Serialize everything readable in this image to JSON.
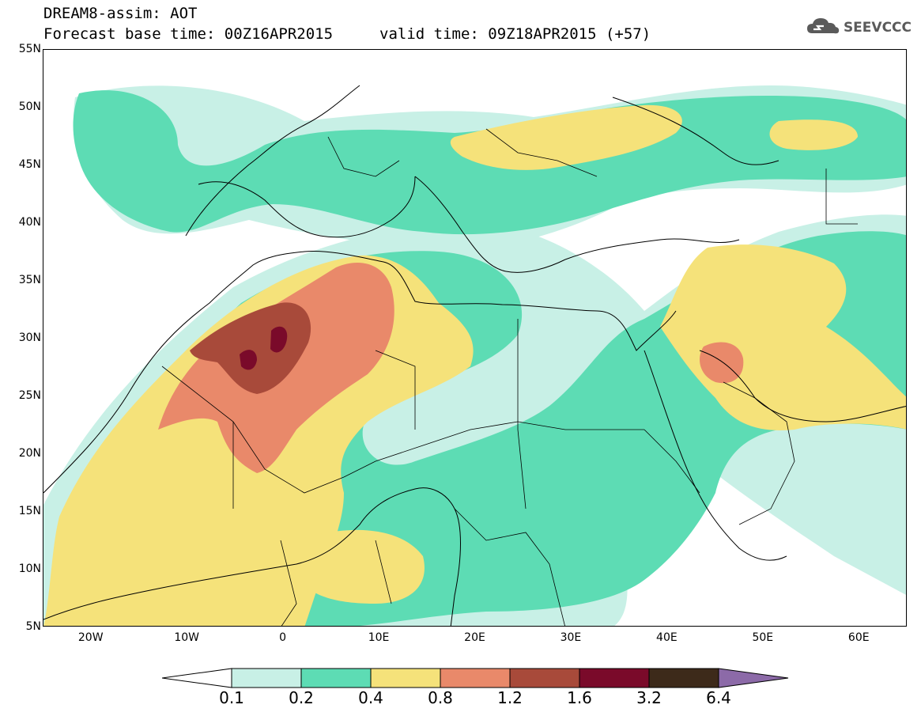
{
  "header": {
    "title": "DREAM8-assim: AOT",
    "base_time_label": "Forecast base time: 00Z16APR2015",
    "valid_time_label": "valid time: 09Z18APR2015 (+57)"
  },
  "logo": {
    "text": "SEEVCCC",
    "icon": "cloud-icon"
  },
  "map": {
    "extent": {
      "lon": [
        -25,
        65
      ],
      "lat": [
        5,
        55
      ]
    },
    "lat_ticks": [
      "55N",
      "50N",
      "45N",
      "40N",
      "35N",
      "30N",
      "25N",
      "20N",
      "15N",
      "10N",
      "5N"
    ],
    "lon_ticks": [
      "20W",
      "10W",
      "0",
      "10E",
      "20E",
      "30E",
      "40E",
      "50E",
      "60E"
    ],
    "field": "Aerosol optical thickness"
  },
  "colorbar": {
    "levels": [
      "0.1",
      "0.2",
      "0.4",
      "0.8",
      "1.2",
      "1.6",
      "3.2",
      "6.4"
    ],
    "colors": [
      "#ffffff",
      "#c8f0e6",
      "#5ddcb4",
      "#f5e27a",
      "#e9896a",
      "#a84a3a",
      "#7a0a2a",
      "#3d2a1a",
      "#8c6aa8"
    ]
  }
}
